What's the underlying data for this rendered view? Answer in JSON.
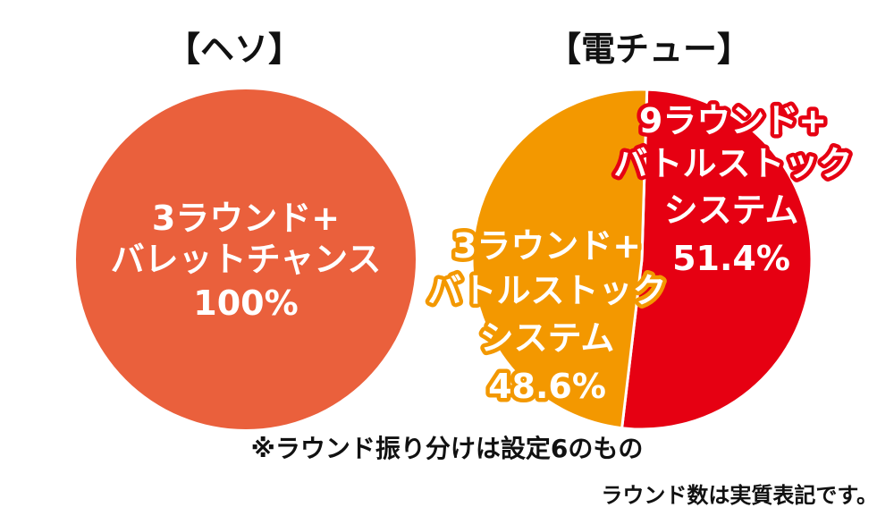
{
  "chart_data": [
    {
      "type": "pie",
      "title": "【ヘソ】",
      "slices": [
        {
          "label_lines": [
            "3ラウンド+",
            "バレットチャンス"
          ],
          "value": 100,
          "value_label": "100%",
          "color": "#ea603c"
        }
      ]
    },
    {
      "type": "pie",
      "title": "【電チュー】",
      "slices": [
        {
          "label_lines": [
            "9ラウンド+",
            "バトルストック",
            "システム"
          ],
          "value": 51.4,
          "value_label": "51.4%",
          "color": "#e60012"
        },
        {
          "label_lines": [
            "3ラウンド+",
            "バトルストック",
            "システム"
          ],
          "value": 48.6,
          "value_label": "48.6%",
          "color": "#f39800"
        }
      ]
    }
  ],
  "notes": {
    "main": "※ラウンド振り分けは設定6のもの",
    "sub": "ラウンド数は実質表記です。"
  }
}
